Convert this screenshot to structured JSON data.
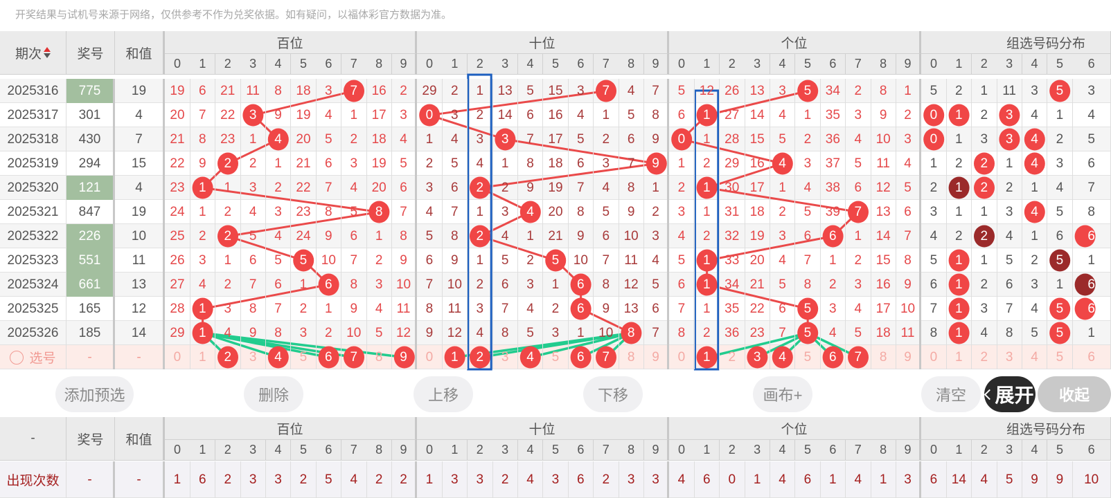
{
  "notice": "开奖结果与试机号来源于网络，仅供参考不作为兑奖依据。如有疑问，以福体彩官方数据为准。",
  "header": {
    "period_label": "期次",
    "sort_icon": "sort-up-down-icon",
    "number_label": "奖号",
    "sum_label": "和值",
    "sections": [
      "百位",
      "十位",
      "个位",
      "组选号码分布"
    ],
    "digits": [
      "0",
      "1",
      "2",
      "3",
      "4",
      "5",
      "6",
      "7",
      "8",
      "9"
    ]
  },
  "rows": [
    {
      "period": "2025316",
      "number": "775",
      "sum": "19",
      "hundreds": [
        19,
        6,
        21,
        11,
        8,
        18,
        3,
        7,
        16,
        2
      ],
      "tens": [
        29,
        2,
        1,
        13,
        5,
        15,
        3,
        7,
        4,
        7
      ],
      "units": [
        5,
        12,
        26,
        13,
        3,
        5,
        34,
        2,
        8,
        1
      ],
      "group": [
        5,
        2,
        1,
        11,
        3,
        5,
        3
      ]
    },
    {
      "period": "2025317",
      "number": "301",
      "sum": "4",
      "hundreds": [
        20,
        7,
        22,
        3,
        9,
        19,
        4,
        1,
        17,
        3
      ],
      "tens": [
        0,
        3,
        2,
        14,
        6,
        16,
        4,
        1,
        5,
        8
      ],
      "units": [
        6,
        1,
        27,
        14,
        4,
        1,
        35,
        3,
        9,
        2
      ],
      "group": [
        0,
        1,
        2,
        3,
        4,
        1,
        4
      ]
    },
    {
      "period": "2025318",
      "number": "430",
      "sum": "7",
      "hundreds": [
        21,
        8,
        23,
        1,
        4,
        20,
        5,
        2,
        18,
        4
      ],
      "tens": [
        1,
        4,
        3,
        3,
        7,
        17,
        5,
        2,
        6,
        9
      ],
      "units": [
        0,
        1,
        28,
        15,
        5,
        2,
        36,
        4,
        10,
        3
      ],
      "group": [
        0,
        1,
        3,
        3,
        4,
        2,
        5
      ]
    },
    {
      "period": "2025319",
      "number": "294",
      "sum": "15",
      "hundreds": [
        22,
        9,
        2,
        2,
        1,
        21,
        6,
        3,
        19,
        5
      ],
      "tens": [
        2,
        5,
        4,
        1,
        8,
        18,
        6,
        3,
        7,
        9
      ],
      "units": [
        1,
        2,
        29,
        16,
        4,
        3,
        37,
        5,
        11,
        4
      ],
      "group": [
        1,
        2,
        2,
        1,
        4,
        3,
        6
      ]
    },
    {
      "period": "2025320",
      "number": "121",
      "sum": "4",
      "hundreds": [
        23,
        1,
        1,
        3,
        2,
        22,
        7,
        4,
        20,
        6
      ],
      "tens": [
        3,
        6,
        2,
        2,
        9,
        19,
        7,
        4,
        8,
        1
      ],
      "units": [
        2,
        1,
        30,
        17,
        1,
        4,
        38,
        6,
        12,
        5
      ],
      "group": [
        2,
        1,
        2,
        2,
        1,
        4,
        7
      ]
    },
    {
      "period": "2025321",
      "number": "847",
      "sum": "19",
      "hundreds": [
        24,
        1,
        2,
        4,
        3,
        23,
        8,
        5,
        8,
        7
      ],
      "tens": [
        4,
        7,
        1,
        3,
        4,
        20,
        8,
        5,
        9,
        2
      ],
      "units": [
        3,
        1,
        31,
        18,
        2,
        5,
        39,
        7,
        13,
        6
      ],
      "group": [
        3,
        1,
        1,
        3,
        4,
        5,
        8
      ]
    },
    {
      "period": "2025322",
      "number": "226",
      "sum": "10",
      "hundreds": [
        25,
        2,
        2,
        5,
        4,
        24,
        9,
        6,
        1,
        8
      ],
      "tens": [
        5,
        8,
        2,
        4,
        1,
        21,
        9,
        6,
        10,
        3
      ],
      "units": [
        4,
        2,
        32,
        19,
        3,
        6,
        6,
        1,
        14,
        7
      ],
      "group": [
        4,
        2,
        2,
        4,
        1,
        6,
        6
      ]
    },
    {
      "period": "2025323",
      "number": "551",
      "sum": "11",
      "hundreds": [
        26,
        3,
        1,
        6,
        5,
        5,
        10,
        7,
        2,
        9
      ],
      "tens": [
        6,
        9,
        1,
        5,
        2,
        5,
        10,
        7,
        11,
        4
      ],
      "units": [
        5,
        1,
        33,
        20,
        4,
        7,
        1,
        2,
        15,
        8
      ],
      "group": [
        5,
        1,
        1,
        5,
        2,
        5,
        1
      ]
    },
    {
      "period": "2025324",
      "number": "661",
      "sum": "13",
      "hundreds": [
        27,
        4,
        2,
        7,
        6,
        1,
        6,
        8,
        3,
        10
      ],
      "tens": [
        7,
        10,
        2,
        6,
        3,
        1,
        6,
        8,
        12,
        5
      ],
      "units": [
        6,
        1,
        34,
        21,
        5,
        8,
        2,
        3,
        16,
        9
      ],
      "group": [
        6,
        1,
        2,
        6,
        3,
        1,
        6
      ]
    },
    {
      "period": "2025325",
      "number": "165",
      "sum": "12",
      "hundreds": [
        28,
        1,
        3,
        8,
        7,
        2,
        1,
        9,
        4,
        11
      ],
      "tens": [
        8,
        11,
        3,
        7,
        4,
        2,
        6,
        9,
        13,
        6
      ],
      "units": [
        7,
        1,
        35,
        22,
        6,
        5,
        3,
        4,
        17,
        10
      ],
      "group": [
        7,
        1,
        3,
        7,
        4,
        5,
        6
      ]
    },
    {
      "period": "2025326",
      "number": "185",
      "sum": "14",
      "hundreds": [
        29,
        1,
        4,
        9,
        8,
        3,
        2,
        10,
        5,
        12
      ],
      "tens": [
        9,
        12,
        4,
        8,
        5,
        3,
        1,
        10,
        8,
        7
      ],
      "units": [
        8,
        2,
        36,
        23,
        7,
        5,
        4,
        5,
        18,
        11
      ],
      "group": [
        8,
        1,
        4,
        8,
        5,
        5,
        1
      ]
    }
  ],
  "selection_row": {
    "label": "选号",
    "radio_icon": "circle-radio-icon",
    "number": "-",
    "sum": "-",
    "hundreds_selected": [
      2,
      4,
      6,
      7,
      9
    ],
    "tens_selected": [
      1,
      2,
      4,
      6,
      7
    ],
    "units_selected": [
      1,
      3,
      4,
      6,
      7
    ]
  },
  "buttons": [
    "添加预选",
    "删除",
    "上移",
    "下移",
    "画布+",
    "清空",
    "收起"
  ],
  "bottom": {
    "period_label": "-",
    "number_label": "奖号",
    "sum_label": "和值",
    "row_label": "出现次数",
    "number_value": "-",
    "sum_value": "-",
    "hundreds_counts": [
      1,
      6,
      2,
      3,
      3,
      2,
      5,
      4,
      2,
      2
    ],
    "tens_counts": [
      1,
      3,
      3,
      2,
      4,
      3,
      6,
      2,
      3,
      3
    ],
    "units_counts": [
      4,
      6,
      0,
      1,
      4,
      6,
      1,
      4,
      1,
      3
    ],
    "group_counts": [
      6,
      14,
      4,
      5,
      9,
      9,
      10
    ]
  },
  "expand_label": "展开",
  "expand_icon": "chevron-left-icon",
  "colors": {
    "ball": "#f04646",
    "ball_repeat": "#9b2a2a",
    "trend_line": "#ea4a4a",
    "selection_line": "#22cc8e",
    "canvas_mark": "#1c5fbf",
    "pair_number_bg": "#a3bf9f",
    "selection_row_bg": "#fdece8"
  }
}
